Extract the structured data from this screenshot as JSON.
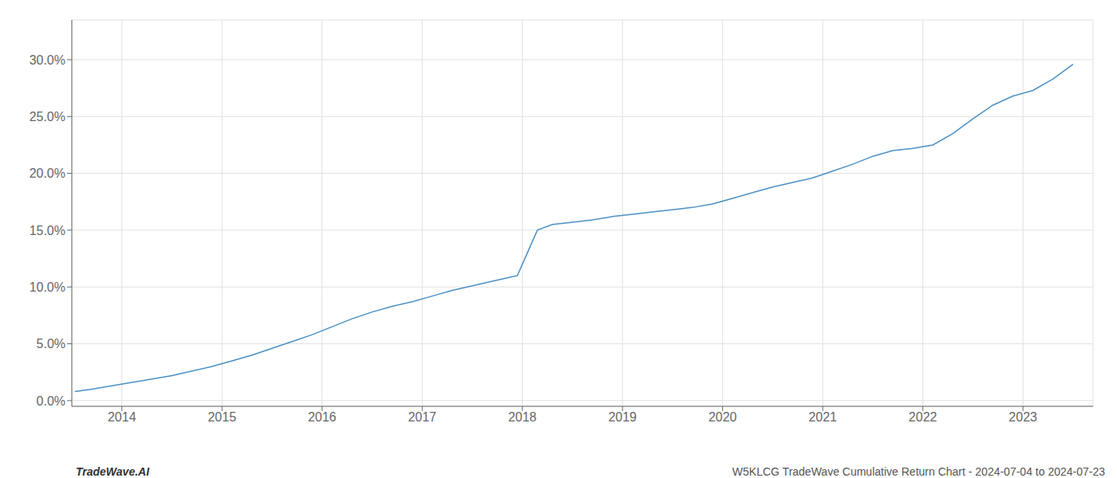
{
  "chart_data": {
    "type": "line",
    "x": [
      2013.53,
      2013.7,
      2013.9,
      2014.1,
      2014.3,
      2014.5,
      2014.7,
      2014.9,
      2015.1,
      2015.3,
      2015.5,
      2015.7,
      2015.9,
      2016.1,
      2016.3,
      2016.5,
      2016.7,
      2016.9,
      2017.1,
      2017.3,
      2017.5,
      2017.7,
      2017.85,
      2017.95,
      2018.05,
      2018.15,
      2018.3,
      2018.5,
      2018.7,
      2018.9,
      2019.1,
      2019.3,
      2019.5,
      2019.7,
      2019.9,
      2020.1,
      2020.3,
      2020.5,
      2020.7,
      2020.9,
      2021.1,
      2021.3,
      2021.5,
      2021.7,
      2021.9,
      2022.1,
      2022.3,
      2022.5,
      2022.7,
      2022.9,
      2023.1,
      2023.3,
      2023.5
    ],
    "values": [
      0.008,
      0.01,
      0.013,
      0.016,
      0.019,
      0.022,
      0.026,
      0.03,
      0.035,
      0.04,
      0.046,
      0.052,
      0.058,
      0.065,
      0.072,
      0.078,
      0.083,
      0.087,
      0.092,
      0.097,
      0.101,
      0.105,
      0.108,
      0.11,
      0.13,
      0.15,
      0.155,
      0.157,
      0.159,
      0.162,
      0.164,
      0.166,
      0.168,
      0.17,
      0.173,
      0.178,
      0.183,
      0.188,
      0.192,
      0.196,
      0.202,
      0.208,
      0.215,
      0.22,
      0.222,
      0.225,
      0.235,
      0.248,
      0.26,
      0.268,
      0.273,
      0.283,
      0.296
    ],
    "color": "#4a90c4",
    "xlim": [
      2013.5,
      2023.7
    ],
    "ylim": [
      -0.005,
      0.335
    ],
    "xticks": [
      2014,
      2015,
      2016,
      2017,
      2018,
      2019,
      2020,
      2021,
      2022,
      2023
    ],
    "yticks": [
      {
        "value": 0.0,
        "label": "0.0%"
      },
      {
        "value": 0.05,
        "label": "5.0%"
      },
      {
        "value": 0.1,
        "label": "10.0%"
      },
      {
        "value": 0.15,
        "label": "15.0%"
      },
      {
        "value": 0.2,
        "label": "20.0%"
      },
      {
        "value": 0.25,
        "label": "25.0%"
      },
      {
        "value": 0.3,
        "label": "30.0%"
      }
    ],
    "grid": true,
    "annotations": [
      "TradeWave.AI",
      "W5KLCG TradeWave Cumulative Return Chart - 2024-07-04 to 2024-07-23"
    ]
  }
}
